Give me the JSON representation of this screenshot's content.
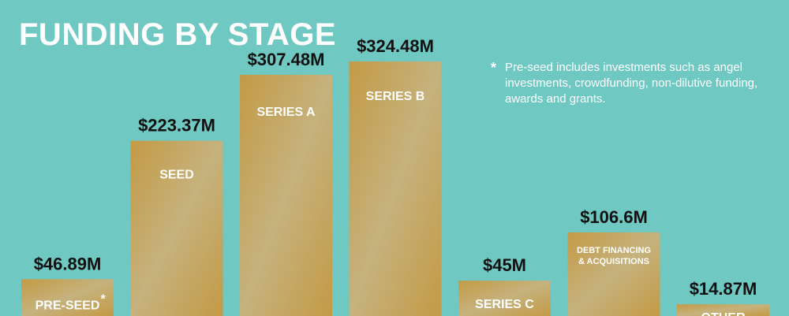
{
  "chart_data": {
    "type": "bar",
    "title": "FUNDING BY STAGE",
    "xlabel": "",
    "ylabel": "",
    "categories": [
      "PRE-SEED",
      "SEED",
      "SERIES A",
      "SERIES B",
      "SERIES C",
      "DEBT FINANCING & ACQUISITIONS",
      "OTHER"
    ],
    "value_labels": [
      "$46.89M",
      "$223.37M",
      "$307.48M",
      "$324.48M",
      "$45M",
      "$106.6M",
      "$14.87M"
    ],
    "values": [
      46.89,
      223.37,
      307.48,
      324.48,
      45,
      106.6,
      14.87
    ],
    "grid": false,
    "legend": "none",
    "colors": {
      "background": "#6fc8c1",
      "bar_dark": "#c49a45",
      "bar_light": "#c5b27d"
    }
  },
  "footnote": {
    "symbol": "*",
    "text": "Pre-seed includes investments such as angel investments, crowdfunding, non-dilutive funding, awards and grants."
  }
}
